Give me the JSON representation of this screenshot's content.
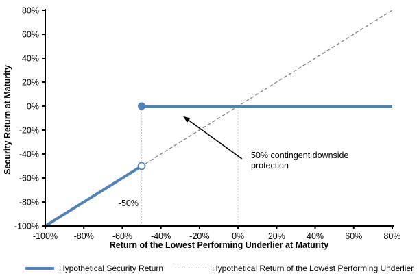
{
  "labels": {
    "x_axis_title": "Return of the Lowest Performing Underlier at Maturity",
    "y_axis_title": "Security Return at Maturity",
    "threshold_label": "-50%",
    "annotation_line1": "50% contingent downside",
    "annotation_line2": "protection"
  },
  "legend": {
    "security_label": "Hypothetical Security Return",
    "underlier_label": "Hypothetical Return of the Lowest Performing Underlier"
  },
  "colors": {
    "security_line": "#4f81bd",
    "underlier_line": "#7f7f7f",
    "reference_dotted": "#b0b0b0",
    "axis": "#000000"
  },
  "chart_data": {
    "type": "line",
    "title": "",
    "xlabel": "Return of the Lowest Performing Underlier at Maturity",
    "ylabel": "Security Return at Maturity",
    "xlim": [
      -100,
      80
    ],
    "ylim": [
      -100,
      80
    ],
    "grid": false,
    "legend_position": "bottom",
    "x_ticks": [
      -100,
      -80,
      -60,
      -40,
      -20,
      0,
      20,
      40,
      60,
      80
    ],
    "x_tick_labels": [
      "-100%",
      "-80%",
      "-60%",
      "-40%",
      "-20%",
      "0%",
      "20%",
      "40%",
      "60%",
      "80%"
    ],
    "y_ticks": [
      -100,
      -80,
      -60,
      -40,
      -20,
      0,
      20,
      40,
      60,
      80
    ],
    "y_tick_labels": [
      "-100%",
      "-80%",
      "-60%",
      "-40%",
      "-20%",
      "0%",
      "20%",
      "40%",
      "60%",
      "80%"
    ],
    "series": [
      {
        "name": "Hypothetical Return of the Lowest Performing Underlier",
        "color": "#7f7f7f",
        "style": "dashed",
        "width": 1.3,
        "segments": [
          {
            "points": [
              [
                -100,
                -100
              ],
              [
                80,
                80
              ]
            ]
          }
        ]
      },
      {
        "name": "Hypothetical Security Return",
        "color": "#4f81bd",
        "style": "solid",
        "width": 4,
        "segments": [
          {
            "points": [
              [
                -100,
                -100
              ],
              [
                -50,
                -50
              ]
            ],
            "end_marker": "open-circle"
          },
          {
            "points": [
              [
                -50,
                0
              ],
              [
                80,
                0
              ]
            ],
            "start_marker": "filled-circle"
          }
        ]
      }
    ],
    "reference_lines": [
      {
        "orientation": "vertical",
        "x": -50,
        "y_from": -100,
        "y_to": 0,
        "style": "dotted",
        "color": "#b0b0b0"
      },
      {
        "orientation": "vertical",
        "x": 0,
        "y_from": -100,
        "y_to": 0,
        "style": "dotted",
        "color": "#b0b0b0"
      }
    ],
    "annotations": [
      {
        "text": "50% contingent downside protection",
        "arrow_from": [
          2,
          -44
        ],
        "arrow_to": [
          -28,
          -9
        ]
      },
      {
        "text": "-50%",
        "position": [
          -57,
          -81
        ]
      }
    ]
  }
}
